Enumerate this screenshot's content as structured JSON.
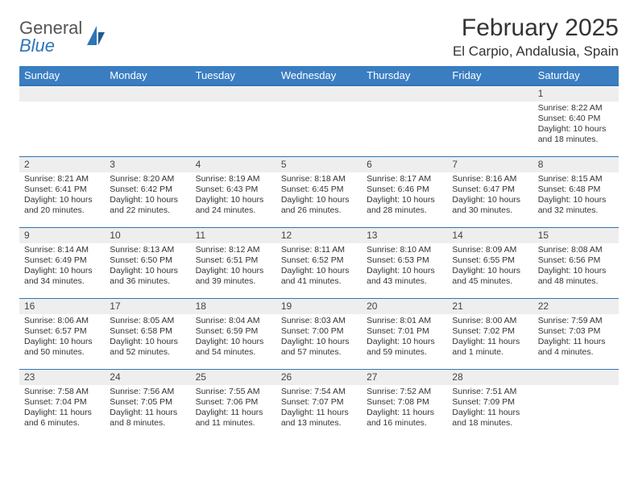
{
  "logo": {
    "line1": "General",
    "line2": "Blue"
  },
  "title": "February 2025",
  "location": "El Carpio, Andalusia, Spain",
  "colors": {
    "header_bg": "#3a7ec1",
    "header_text": "#ffffff",
    "border": "#2f74b5",
    "daynum_bg": "#eeeeee",
    "text": "#333333",
    "logo_gray": "#555555",
    "logo_blue": "#2f74b5"
  },
  "weekdays": [
    "Sunday",
    "Monday",
    "Tuesday",
    "Wednesday",
    "Thursday",
    "Friday",
    "Saturday"
  ],
  "weeks": [
    [
      {
        "n": "",
        "sr": "",
        "ss": "",
        "dl": ""
      },
      {
        "n": "",
        "sr": "",
        "ss": "",
        "dl": ""
      },
      {
        "n": "",
        "sr": "",
        "ss": "",
        "dl": ""
      },
      {
        "n": "",
        "sr": "",
        "ss": "",
        "dl": ""
      },
      {
        "n": "",
        "sr": "",
        "ss": "",
        "dl": ""
      },
      {
        "n": "",
        "sr": "",
        "ss": "",
        "dl": ""
      },
      {
        "n": "1",
        "sr": "Sunrise: 8:22 AM",
        "ss": "Sunset: 6:40 PM",
        "dl": "Daylight: 10 hours and 18 minutes."
      }
    ],
    [
      {
        "n": "2",
        "sr": "Sunrise: 8:21 AM",
        "ss": "Sunset: 6:41 PM",
        "dl": "Daylight: 10 hours and 20 minutes."
      },
      {
        "n": "3",
        "sr": "Sunrise: 8:20 AM",
        "ss": "Sunset: 6:42 PM",
        "dl": "Daylight: 10 hours and 22 minutes."
      },
      {
        "n": "4",
        "sr": "Sunrise: 8:19 AM",
        "ss": "Sunset: 6:43 PM",
        "dl": "Daylight: 10 hours and 24 minutes."
      },
      {
        "n": "5",
        "sr": "Sunrise: 8:18 AM",
        "ss": "Sunset: 6:45 PM",
        "dl": "Daylight: 10 hours and 26 minutes."
      },
      {
        "n": "6",
        "sr": "Sunrise: 8:17 AM",
        "ss": "Sunset: 6:46 PM",
        "dl": "Daylight: 10 hours and 28 minutes."
      },
      {
        "n": "7",
        "sr": "Sunrise: 8:16 AM",
        "ss": "Sunset: 6:47 PM",
        "dl": "Daylight: 10 hours and 30 minutes."
      },
      {
        "n": "8",
        "sr": "Sunrise: 8:15 AM",
        "ss": "Sunset: 6:48 PM",
        "dl": "Daylight: 10 hours and 32 minutes."
      }
    ],
    [
      {
        "n": "9",
        "sr": "Sunrise: 8:14 AM",
        "ss": "Sunset: 6:49 PM",
        "dl": "Daylight: 10 hours and 34 minutes."
      },
      {
        "n": "10",
        "sr": "Sunrise: 8:13 AM",
        "ss": "Sunset: 6:50 PM",
        "dl": "Daylight: 10 hours and 36 minutes."
      },
      {
        "n": "11",
        "sr": "Sunrise: 8:12 AM",
        "ss": "Sunset: 6:51 PM",
        "dl": "Daylight: 10 hours and 39 minutes."
      },
      {
        "n": "12",
        "sr": "Sunrise: 8:11 AM",
        "ss": "Sunset: 6:52 PM",
        "dl": "Daylight: 10 hours and 41 minutes."
      },
      {
        "n": "13",
        "sr": "Sunrise: 8:10 AM",
        "ss": "Sunset: 6:53 PM",
        "dl": "Daylight: 10 hours and 43 minutes."
      },
      {
        "n": "14",
        "sr": "Sunrise: 8:09 AM",
        "ss": "Sunset: 6:55 PM",
        "dl": "Daylight: 10 hours and 45 minutes."
      },
      {
        "n": "15",
        "sr": "Sunrise: 8:08 AM",
        "ss": "Sunset: 6:56 PM",
        "dl": "Daylight: 10 hours and 48 minutes."
      }
    ],
    [
      {
        "n": "16",
        "sr": "Sunrise: 8:06 AM",
        "ss": "Sunset: 6:57 PM",
        "dl": "Daylight: 10 hours and 50 minutes."
      },
      {
        "n": "17",
        "sr": "Sunrise: 8:05 AM",
        "ss": "Sunset: 6:58 PM",
        "dl": "Daylight: 10 hours and 52 minutes."
      },
      {
        "n": "18",
        "sr": "Sunrise: 8:04 AM",
        "ss": "Sunset: 6:59 PM",
        "dl": "Daylight: 10 hours and 54 minutes."
      },
      {
        "n": "19",
        "sr": "Sunrise: 8:03 AM",
        "ss": "Sunset: 7:00 PM",
        "dl": "Daylight: 10 hours and 57 minutes."
      },
      {
        "n": "20",
        "sr": "Sunrise: 8:01 AM",
        "ss": "Sunset: 7:01 PM",
        "dl": "Daylight: 10 hours and 59 minutes."
      },
      {
        "n": "21",
        "sr": "Sunrise: 8:00 AM",
        "ss": "Sunset: 7:02 PM",
        "dl": "Daylight: 11 hours and 1 minute."
      },
      {
        "n": "22",
        "sr": "Sunrise: 7:59 AM",
        "ss": "Sunset: 7:03 PM",
        "dl": "Daylight: 11 hours and 4 minutes."
      }
    ],
    [
      {
        "n": "23",
        "sr": "Sunrise: 7:58 AM",
        "ss": "Sunset: 7:04 PM",
        "dl": "Daylight: 11 hours and 6 minutes."
      },
      {
        "n": "24",
        "sr": "Sunrise: 7:56 AM",
        "ss": "Sunset: 7:05 PM",
        "dl": "Daylight: 11 hours and 8 minutes."
      },
      {
        "n": "25",
        "sr": "Sunrise: 7:55 AM",
        "ss": "Sunset: 7:06 PM",
        "dl": "Daylight: 11 hours and 11 minutes."
      },
      {
        "n": "26",
        "sr": "Sunrise: 7:54 AM",
        "ss": "Sunset: 7:07 PM",
        "dl": "Daylight: 11 hours and 13 minutes."
      },
      {
        "n": "27",
        "sr": "Sunrise: 7:52 AM",
        "ss": "Sunset: 7:08 PM",
        "dl": "Daylight: 11 hours and 16 minutes."
      },
      {
        "n": "28",
        "sr": "Sunrise: 7:51 AM",
        "ss": "Sunset: 7:09 PM",
        "dl": "Daylight: 11 hours and 18 minutes."
      },
      {
        "n": "",
        "sr": "",
        "ss": "",
        "dl": ""
      }
    ]
  ]
}
